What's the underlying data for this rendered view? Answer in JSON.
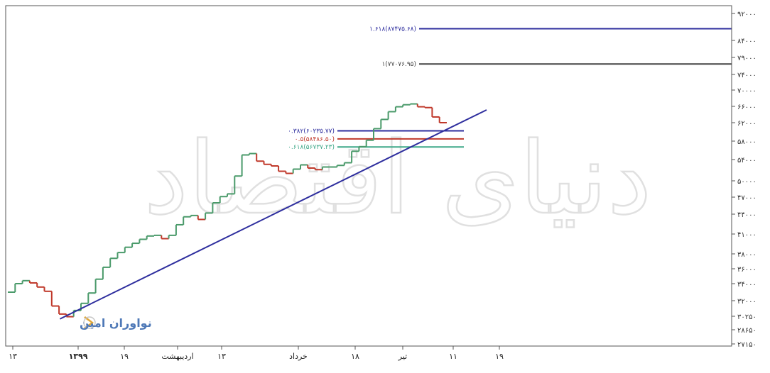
{
  "chart_data": {
    "type": "line",
    "title": "",
    "xlabel": "",
    "ylabel": "",
    "ylim": [
      27150,
      92000
    ],
    "y_ticks": [
      "۹۲۰۰۰",
      "۸۴۰۰۰",
      "۷۹۰۰۰",
      "۷۴۰۰۰",
      "۷۰۰۰۰",
      "۶۶۰۰۰",
      "۶۲۰۰۰",
      "۵۸۰۰۰",
      "۵۴۰۰۰",
      "۵۰۰۰۰",
      "۴۷۰۰۰",
      "۴۴۰۰۰",
      "۴۱۰۰۰",
      "۳۸۰۰۰",
      "۳۶۰۰۰",
      "۳۴۰۰۰",
      "۳۲۰۰۰",
      "۳۰۲۵۰",
      "۲۸۶۵۰",
      "۲۷۱۵۰"
    ],
    "y_tick_values": [
      92000,
      84000,
      79000,
      74000,
      70000,
      66000,
      62000,
      58000,
      54000,
      50000,
      47000,
      44000,
      41000,
      38000,
      36000,
      34000,
      32000,
      30250,
      28650,
      27150
    ],
    "x_ticks": [
      "۱۳",
      "۱۳۹۹",
      "۱۹",
      "اردیبهشت",
      "۱۳",
      "خرداد",
      "۱۸",
      "تیر",
      "۱۱",
      "۱۹"
    ],
    "series": [
      {
        "type": "step",
        "up_color": "#4a9a6a",
        "down_color": "#c0392b",
        "values": [
          33000,
          34000,
          34400,
          34100,
          33600,
          33100,
          31400,
          30500,
          30200,
          30900,
          31700,
          32900,
          34600,
          36200,
          37400,
          38200,
          39000,
          39600,
          40200,
          40700,
          40800,
          40300,
          40800,
          42400,
          43600,
          43800,
          43200,
          44200,
          46000,
          47100,
          47600,
          50900,
          55000,
          55300,
          53700,
          53100,
          52800,
          51800,
          51400,
          52200,
          53000,
          52400,
          52100,
          52600,
          52600,
          52900,
          53400,
          55800,
          56800,
          58200,
          60700,
          62800,
          64700,
          65900,
          66400,
          66600,
          65900,
          65700,
          63400,
          62000
        ]
      }
    ],
    "trendline": {
      "from": [
        28,
        29600
      ],
      "to": [
        59,
        66800
      ],
      "color": "#2e2e9e"
    },
    "fibonacci_levels": [
      {
        "label": "۱.۶۱۸(۸۷۴۷۵.۶۸)",
        "value": 87475.68,
        "color": "#2e2e9e"
      },
      {
        "label": "۱(۷۷۰۷۶.۹۵)",
        "value": 77076.95,
        "color": "#444444"
      },
      {
        "label": "۰.۳۸۲(۶۰۲۳۵.۷۷)",
        "value": 60235.77,
        "color": "#2e2e9e"
      },
      {
        "label": "۰.۵(۵۸۴۸۶.۵۰)",
        "value": 58486.5,
        "color": "#c0392b"
      },
      {
        "label": "۰.۶۱۸(۵۶۷۳۷.۲۳)",
        "value": 56737.23,
        "color": "#3fa889"
      }
    ],
    "grid": false,
    "legend": "none"
  },
  "logo": {
    "text": "نواوران امین"
  },
  "watermark": {
    "text": "دنیای اقتصاد"
  }
}
